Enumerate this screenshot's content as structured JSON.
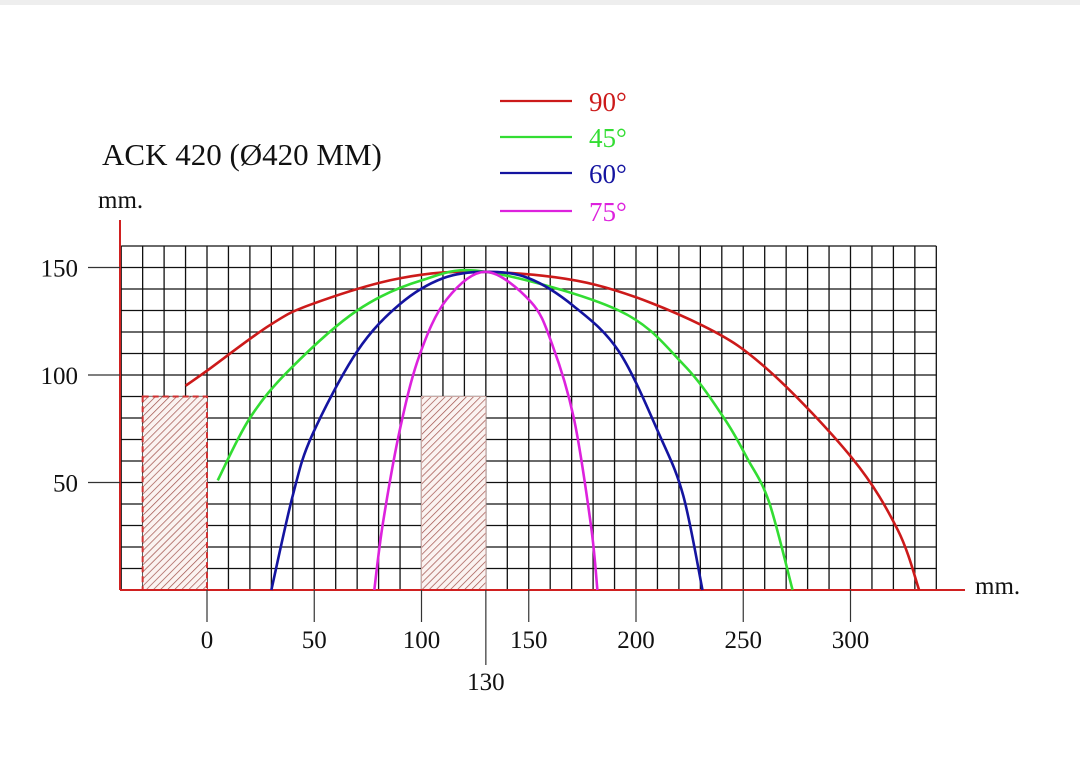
{
  "chart_data": {
    "type": "line",
    "title": "ACK 420 (Ø420 MM)",
    "xlabel": "mm.",
    "ylabel": "mm.",
    "xlim": [
      -40,
      340
    ],
    "ylim": [
      0,
      160
    ],
    "grid": true,
    "grid_step": 10,
    "x_ticks": [
      0,
      50,
      100,
      130,
      150,
      200,
      250,
      300
    ],
    "x_tick_labels": [
      "0",
      "50",
      "100",
      "130",
      "150",
      "200",
      "250",
      "300"
    ],
    "y_ticks": [
      50,
      100,
      150
    ],
    "y_tick_labels": [
      "50",
      "100",
      "150"
    ],
    "legend_placement": "top-center",
    "series": [
      {
        "name": "90°",
        "color": "#cc1a1a",
        "points": [
          [
            -10,
            95
          ],
          [
            0,
            102
          ],
          [
            29,
            123
          ],
          [
            49,
            133
          ],
          [
            90,
            145
          ],
          [
            130,
            148
          ],
          [
            181,
            142
          ],
          [
            231,
            123
          ],
          [
            262,
            102
          ],
          [
            301,
            61
          ],
          [
            322,
            28
          ],
          [
            332,
            0
          ]
        ]
      },
      {
        "name": "45°",
        "color": "#33dd33",
        "points": [
          [
            5,
            51
          ],
          [
            20,
            80
          ],
          [
            39,
            103
          ],
          [
            70,
            130
          ],
          [
            100,
            144
          ],
          [
            130,
            148
          ],
          [
            192,
            130
          ],
          [
            222,
            105
          ],
          [
            241,
            80
          ],
          [
            252,
            61
          ],
          [
            262,
            41
          ],
          [
            273,
            0
          ]
        ]
      },
      {
        "name": "60°",
        "color": "#1414a0",
        "points": [
          [
            30,
            0
          ],
          [
            40,
            44
          ],
          [
            49,
            72
          ],
          [
            70,
            111
          ],
          [
            90,
            133
          ],
          [
            110,
            145
          ],
          [
            130,
            148
          ],
          [
            150,
            145
          ],
          [
            171,
            132
          ],
          [
            192,
            111
          ],
          [
            211,
            72
          ],
          [
            222,
            44
          ],
          [
            231,
            0
          ]
        ]
      },
      {
        "name": "75°",
        "color": "#dd22dd",
        "points": [
          [
            78,
            0
          ],
          [
            82,
            31
          ],
          [
            90,
            75
          ],
          [
            99,
            109
          ],
          [
            111.6,
            135
          ],
          [
            130,
            148
          ],
          [
            151,
            134
          ],
          [
            161,
            114
          ],
          [
            171,
            80
          ],
          [
            179,
            30
          ],
          [
            182,
            0
          ]
        ]
      }
    ],
    "obstacles": [
      {
        "x": [
          -30,
          0
        ],
        "y": [
          0,
          90
        ],
        "style": "hatched-dashed-border"
      },
      {
        "x": [
          100,
          130
        ],
        "y": [
          0,
          90
        ],
        "style": "hatched"
      }
    ]
  }
}
